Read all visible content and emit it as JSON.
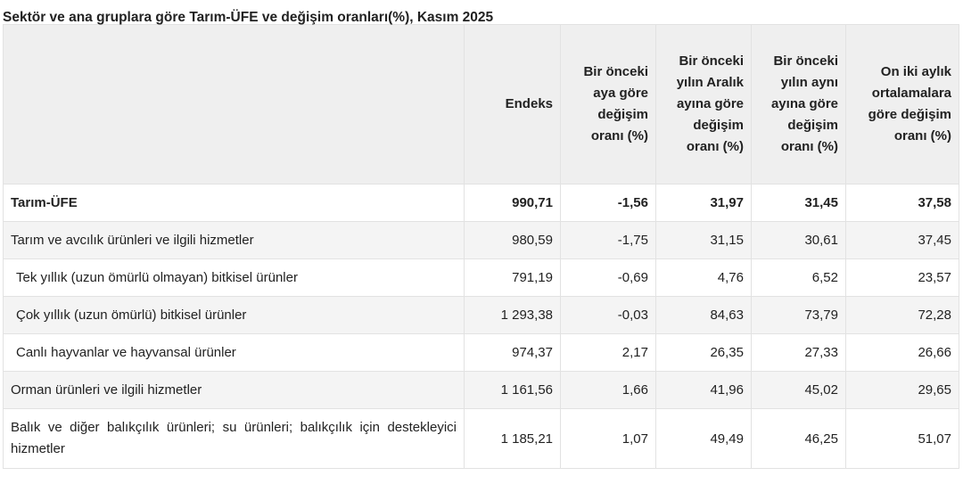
{
  "title": "Sektör ve ana gruplara göre Tarım-ÜFE ve değişim oranları(%), Kasım 2025",
  "table": {
    "headers": [
      "Endeks",
      "Bir önceki aya göre değişim oranı (%)",
      "Bir önceki yılın Aralık ayına göre değişim oranı (%)",
      "Bir önceki yılın aynı ayına göre değişim oranı (%)",
      "On iki aylık ortalamalara göre değişim oranı (%)"
    ],
    "rows": [
      {
        "label": "Tarım-ÜFE",
        "values": [
          "990,71",
          "-1,56",
          "31,97",
          "31,45",
          "37,58"
        ]
      },
      {
        "label": "Tarım ve avcılık ürünleri ve ilgili hizmetler",
        "values": [
          "980,59",
          "-1,75",
          "31,15",
          "30,61",
          "37,45"
        ]
      },
      {
        "label": "Tek yıllık (uzun ömürlü olmayan) bitkisel ürünler",
        "values": [
          "791,19",
          "-0,69",
          "4,76",
          "6,52",
          "23,57"
        ]
      },
      {
        "label": "Çok yıllık (uzun ömürlü) bitkisel ürünler",
        "values": [
          "1 293,38",
          "-0,03",
          "84,63",
          "73,79",
          "72,28"
        ]
      },
      {
        "label": "Canlı hayvanlar ve hayvansal ürünler",
        "values": [
          "974,37",
          "2,17",
          "26,35",
          "27,33",
          "26,66"
        ]
      },
      {
        "label": "Orman ürünleri ve ilgili hizmetler",
        "values": [
          "1 161,56",
          "1,66",
          "41,96",
          "45,02",
          "29,65"
        ]
      },
      {
        "label": "Balık ve diğer balıkçılık ürünleri; su ürünleri; balıkçılık için destekleyici hizmetler",
        "values": [
          "1 185,21",
          "1,07",
          "49,49",
          "46,25",
          "51,07"
        ]
      }
    ]
  }
}
